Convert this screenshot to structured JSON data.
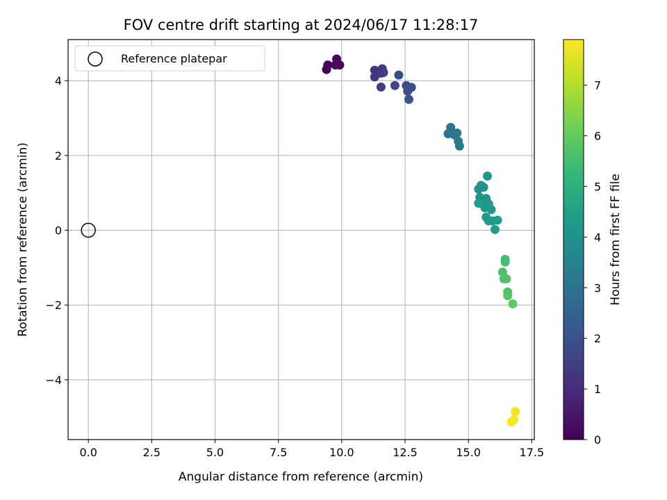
{
  "chart_data": {
    "type": "scatter",
    "title": "FOV centre drift starting at 2024/06/17 11:28:17",
    "xlabel": "Angular distance from reference (arcmin)",
    "ylabel": "Rotation from reference (arcmin)",
    "xlim": [
      -0.8,
      17.6
    ],
    "ylim": [
      -5.6,
      5.1
    ],
    "xticks": [
      "0.0",
      "2.5",
      "5.0",
      "7.5",
      "10.0",
      "12.5",
      "15.0",
      "17.5"
    ],
    "xtick_values": [
      0,
      2.5,
      5,
      7.5,
      10,
      12.5,
      15,
      17.5
    ],
    "yticks": [
      "4",
      "2",
      "0",
      "−2",
      "−4"
    ],
    "ytick_values": [
      4,
      2,
      0,
      -2,
      -4
    ],
    "grid": true,
    "legend": {
      "position": "top-left",
      "label": "Reference platepar"
    },
    "reference_point": {
      "x": 0,
      "y": 0
    },
    "colorbar": {
      "label": "Hours from first FF file",
      "range": [
        0,
        7.9
      ],
      "ticks": [
        "0",
        "1",
        "2",
        "3",
        "4",
        "5",
        "6",
        "7"
      ],
      "tick_values": [
        0,
        1,
        2,
        3,
        4,
        5,
        6,
        7
      ],
      "colormap": [
        "#440154",
        "#482878",
        "#3e4989",
        "#31688e",
        "#26828e",
        "#1f9e89",
        "#35b779",
        "#6ece58",
        "#b5de2b",
        "#fde725"
      ]
    },
    "points": [
      {
        "x": 9.4,
        "y": 4.3,
        "c": 0.0
      },
      {
        "x": 9.45,
        "y": 4.42,
        "c": 0.05
      },
      {
        "x": 9.8,
        "y": 4.58,
        "c": 0.15
      },
      {
        "x": 9.75,
        "y": 4.42,
        "c": 0.2
      },
      {
        "x": 9.92,
        "y": 4.42,
        "c": 0.25
      },
      {
        "x": 11.3,
        "y": 4.28,
        "c": 1.2
      },
      {
        "x": 11.3,
        "y": 4.1,
        "c": 1.25
      },
      {
        "x": 11.55,
        "y": 4.2,
        "c": 1.3
      },
      {
        "x": 11.6,
        "y": 4.32,
        "c": 1.35
      },
      {
        "x": 11.65,
        "y": 4.22,
        "c": 1.4
      },
      {
        "x": 11.55,
        "y": 3.83,
        "c": 1.45
      },
      {
        "x": 12.1,
        "y": 3.87,
        "c": 1.7
      },
      {
        "x": 12.25,
        "y": 4.15,
        "c": 1.75
      },
      {
        "x": 12.55,
        "y": 3.87,
        "c": 1.85
      },
      {
        "x": 12.6,
        "y": 3.72,
        "c": 1.9
      },
      {
        "x": 12.75,
        "y": 3.82,
        "c": 1.95
      },
      {
        "x": 12.65,
        "y": 3.5,
        "c": 2.0
      },
      {
        "x": 14.2,
        "y": 2.58,
        "c": 3.0
      },
      {
        "x": 14.3,
        "y": 2.75,
        "c": 3.05
      },
      {
        "x": 14.45,
        "y": 2.55,
        "c": 3.1
      },
      {
        "x": 14.55,
        "y": 2.6,
        "c": 3.15
      },
      {
        "x": 14.6,
        "y": 2.38,
        "c": 3.2
      },
      {
        "x": 14.65,
        "y": 2.25,
        "c": 3.25
      },
      {
        "x": 15.4,
        "y": 1.1,
        "c": 4.0
      },
      {
        "x": 15.5,
        "y": 1.2,
        "c": 4.02
      },
      {
        "x": 15.6,
        "y": 1.15,
        "c": 4.05
      },
      {
        "x": 15.45,
        "y": 0.88,
        "c": 4.08
      },
      {
        "x": 15.55,
        "y": 0.75,
        "c": 4.1
      },
      {
        "x": 15.7,
        "y": 0.85,
        "c": 4.12
      },
      {
        "x": 15.65,
        "y": 0.6,
        "c": 4.15
      },
      {
        "x": 15.75,
        "y": 1.45,
        "c": 4.18
      },
      {
        "x": 15.8,
        "y": 0.7,
        "c": 4.2
      },
      {
        "x": 15.9,
        "y": 0.55,
        "c": 4.22
      },
      {
        "x": 15.7,
        "y": 0.35,
        "c": 4.25
      },
      {
        "x": 15.8,
        "y": 0.25,
        "c": 4.28
      },
      {
        "x": 15.95,
        "y": 0.25,
        "c": 4.3
      },
      {
        "x": 16.05,
        "y": 0.02,
        "c": 4.32
      },
      {
        "x": 16.15,
        "y": 0.27,
        "c": 4.35
      },
      {
        "x": 15.4,
        "y": 0.72,
        "c": 4.38
      },
      {
        "x": 16.45,
        "y": -0.78,
        "c": 5.5
      },
      {
        "x": 16.45,
        "y": -0.85,
        "c": 5.55
      },
      {
        "x": 16.35,
        "y": -1.12,
        "c": 5.6
      },
      {
        "x": 16.4,
        "y": -1.3,
        "c": 5.65
      },
      {
        "x": 16.5,
        "y": -1.3,
        "c": 5.7
      },
      {
        "x": 16.55,
        "y": -1.65,
        "c": 5.75
      },
      {
        "x": 16.55,
        "y": -1.75,
        "c": 5.8
      },
      {
        "x": 16.75,
        "y": -1.97,
        "c": 5.9
      },
      {
        "x": 16.85,
        "y": -4.85,
        "c": 7.75
      },
      {
        "x": 16.8,
        "y": -5.07,
        "c": 7.8
      },
      {
        "x": 16.7,
        "y": -5.13,
        "c": 7.85
      }
    ]
  }
}
